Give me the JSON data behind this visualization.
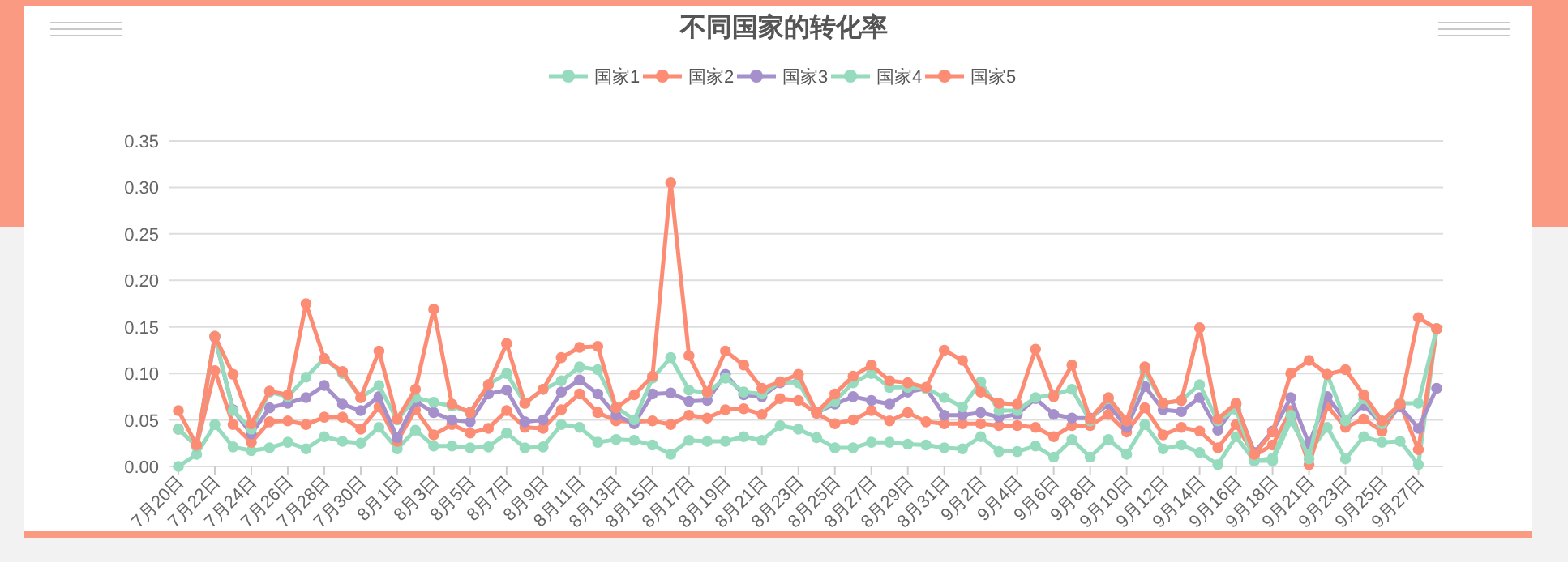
{
  "chart_data": {
    "type": "line",
    "title": "不同国家的转化率",
    "categories": [
      "7月20日",
      null,
      "7月22日",
      null,
      "7月24日",
      null,
      "7月26日",
      null,
      "7月28日",
      null,
      "7月30日",
      null,
      "8月1日",
      null,
      "8月3日",
      null,
      "8月5日",
      null,
      "8月7日",
      null,
      "8月9日",
      null,
      "8月11日",
      null,
      "8月13日",
      null,
      "8月15日",
      null,
      "8月17日",
      null,
      "8月19日",
      null,
      "8月21日",
      null,
      "8月23日",
      null,
      "8月25日",
      null,
      "8月27日",
      null,
      "8月29日",
      null,
      "8月31日",
      null,
      "9月2日",
      null,
      "9月4日",
      null,
      "9月6日",
      null,
      "9月8日",
      null,
      "9月10日",
      null,
      "9月12日",
      null,
      "9月14日",
      null,
      "9月16日",
      null,
      "9月18日",
      null,
      "9月21日",
      null,
      "9月23日",
      null,
      "9月25日",
      null,
      "9月27日",
      null
    ],
    "series": [
      {
        "name": "国家1",
        "color": "#96dbbe",
        "values": [
          0.0,
          0.013,
          0.045,
          0.021,
          0.017,
          0.02,
          0.026,
          0.019,
          0.032,
          0.027,
          0.025,
          0.042,
          0.019,
          0.039,
          0.022,
          0.022,
          0.02,
          0.021,
          0.036,
          0.02,
          0.021,
          0.045,
          0.042,
          0.026,
          0.029,
          0.028,
          0.023,
          0.013,
          0.028,
          0.027,
          0.027,
          0.032,
          0.028,
          0.044,
          0.04,
          0.031,
          0.02,
          0.02,
          0.026,
          0.026,
          0.024,
          0.023,
          0.02,
          0.019,
          0.032,
          0.016,
          0.016,
          0.022,
          0.01,
          0.029,
          0.01,
          0.029,
          0.013,
          0.045,
          0.019,
          0.023,
          0.015,
          0.002,
          0.032,
          0.006,
          0.006,
          0.049,
          0.015,
          0.042,
          0.008,
          0.032,
          0.026,
          0.027,
          0.002,
          0.148
        ]
      },
      {
        "name": "国家2",
        "color": "#fc8c74",
        "values": [
          0.04,
          0.022,
          0.103,
          0.045,
          0.026,
          0.048,
          0.049,
          0.045,
          0.053,
          0.053,
          0.04,
          0.064,
          0.027,
          0.061,
          0.034,
          0.045,
          0.036,
          0.041,
          0.06,
          0.042,
          0.041,
          0.061,
          0.078,
          0.058,
          0.049,
          0.048,
          0.049,
          0.045,
          0.055,
          0.052,
          0.061,
          0.062,
          0.056,
          0.073,
          0.071,
          0.057,
          0.046,
          0.05,
          0.06,
          0.049,
          0.058,
          0.048,
          0.046,
          0.046,
          0.046,
          0.044,
          0.044,
          0.042,
          0.032,
          0.044,
          0.044,
          0.056,
          0.037,
          0.063,
          0.034,
          0.042,
          0.038,
          0.02,
          0.045,
          0.012,
          0.023,
          0.06,
          0.002,
          0.065,
          0.042,
          0.051,
          0.038,
          0.067,
          0.018,
          0.148
        ]
      },
      {
        "name": "国家3",
        "color": "#a590cb",
        "values": [
          null,
          0.022,
          0.139,
          0.061,
          0.035,
          0.063,
          0.068,
          0.074,
          0.087,
          0.067,
          0.06,
          0.075,
          0.031,
          0.07,
          0.058,
          0.05,
          0.048,
          0.078,
          0.082,
          0.048,
          0.05,
          0.08,
          0.093,
          0.078,
          0.055,
          0.046,
          0.078,
          0.079,
          0.07,
          0.071,
          0.099,
          0.077,
          0.075,
          0.09,
          0.091,
          0.058,
          0.067,
          0.075,
          0.071,
          0.067,
          0.08,
          0.084,
          0.055,
          0.055,
          0.058,
          0.053,
          0.056,
          0.073,
          0.056,
          0.052,
          0.052,
          0.067,
          0.042,
          0.086,
          0.061,
          0.059,
          0.074,
          0.039,
          0.067,
          0.015,
          0.038,
          0.074,
          0.024,
          0.075,
          0.049,
          0.066,
          0.046,
          0.064,
          0.041,
          0.084
        ]
      },
      {
        "name": "国家4",
        "color": "#96dbbe",
        "values": [
          0.04,
          0.022,
          0.14,
          0.06,
          0.04,
          0.08,
          0.075,
          0.096,
          0.116,
          0.1,
          0.074,
          0.087,
          0.05,
          0.074,
          0.069,
          0.065,
          0.058,
          0.088,
          0.1,
          0.068,
          0.083,
          0.092,
          0.107,
          0.104,
          0.064,
          0.05,
          0.095,
          0.117,
          0.082,
          0.079,
          0.095,
          0.08,
          0.078,
          0.091,
          0.09,
          0.058,
          0.07,
          0.09,
          0.1,
          0.085,
          0.085,
          0.084,
          0.074,
          0.064,
          0.091,
          0.06,
          0.06,
          0.074,
          0.077,
          0.083,
          0.049,
          0.073,
          0.049,
          0.102,
          0.068,
          0.071,
          0.088,
          0.049,
          0.061,
          0.006,
          0.009,
          0.055,
          0.008,
          0.099,
          0.049,
          0.073,
          0.046,
          0.068,
          0.068,
          0.148
        ]
      },
      {
        "name": "国家5",
        "color": "#fc8c74",
        "values": [
          0.06,
          0.023,
          0.14,
          0.099,
          0.046,
          0.081,
          0.077,
          0.175,
          0.116,
          0.102,
          0.074,
          0.124,
          0.051,
          0.083,
          0.169,
          0.067,
          0.058,
          0.088,
          0.132,
          0.068,
          0.083,
          0.117,
          0.128,
          0.129,
          0.063,
          0.077,
          0.097,
          0.305,
          0.119,
          0.08,
          0.124,
          0.109,
          0.084,
          0.091,
          0.099,
          0.058,
          0.078,
          0.097,
          0.109,
          0.092,
          0.09,
          0.085,
          0.125,
          0.114,
          0.08,
          0.068,
          0.067,
          0.126,
          0.075,
          0.109,
          0.051,
          0.074,
          0.049,
          0.107,
          0.068,
          0.071,
          0.149,
          0.051,
          0.068,
          0.013,
          0.037,
          0.1,
          0.114,
          0.099,
          0.104,
          0.077,
          0.049,
          0.067,
          0.16,
          0.148
        ]
      }
    ],
    "ylim": [
      0,
      0.35
    ],
    "yticks": [
      {
        "value": 0,
        "label": "0.00"
      },
      {
        "value": 0.05,
        "label": "0.05"
      },
      {
        "value": 0.1,
        "label": "0.10"
      },
      {
        "value": 0.15,
        "label": "0.15"
      },
      {
        "value": 0.2,
        "label": "0.20"
      },
      {
        "value": 0.25,
        "label": "0.25"
      },
      {
        "value": 0.3,
        "label": "0.30"
      },
      {
        "value": 0.35,
        "label": "0.35"
      }
    ],
    "grid": "y",
    "legend": "top",
    "marker": "circle",
    "line_style": "solid"
  }
}
